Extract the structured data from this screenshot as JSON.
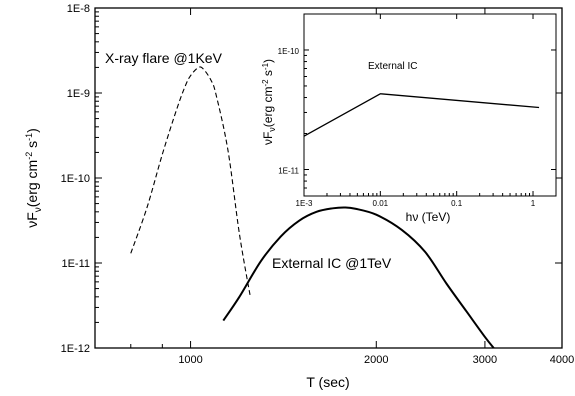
{
  "chart_data": [
    {
      "type": "line",
      "title": "",
      "xlabel": "T (sec)",
      "ylabel": "νF_ν (erg cm^-2 s^-1)",
      "ylabel_parts": {
        "nu": "νF",
        "sub": "ν",
        "unit_a": "(erg cm",
        "exp_a": "-2",
        "unit_b": " s",
        "exp_b": "-1",
        "close": ")"
      },
      "xscale": "log",
      "yscale": "log",
      "xlim": [
        700,
        4000
      ],
      "ylim": [
        1e-12,
        1e-08
      ],
      "xticks": [
        1000,
        2000,
        3000,
        4000
      ],
      "xtick_labels": [
        "1000",
        "2000",
        "3000",
        "4000"
      ],
      "yticks": [
        1e-12,
        1e-11,
        1e-10,
        1e-09,
        1e-08
      ],
      "ytick_labels": [
        "1E-12",
        "1E-11",
        "1E-10",
        "1E-9",
        "1E-8"
      ],
      "grid": false,
      "series": [
        {
          "annotation": "X-ray flare @1KeV",
          "style": "dashed",
          "x": [
            800,
            850,
            900,
            950,
            980,
            1000,
            1030,
            1050,
            1080,
            1100,
            1150,
            1200,
            1250
          ],
          "y": [
            1.3e-11,
            4.5e-11,
            1.9e-10,
            6.5e-10,
            1.2e-09,
            1.6e-09,
            2e-09,
            1.9e-09,
            1.4e-09,
            9.5e-10,
            2.1e-10,
            2.2e-11,
            4e-12
          ]
        },
        {
          "annotation": "External IC @1TeV",
          "style": "solid",
          "x": [
            1130,
            1200,
            1300,
            1400,
            1500,
            1600,
            1700,
            1780,
            1850,
            2000,
            2200,
            2400,
            2600,
            2800,
            3000,
            3100
          ],
          "y": [
            2.1e-12,
            4e-12,
            1.05e-11,
            2.05e-11,
            3.15e-11,
            4e-11,
            4.4e-11,
            4.5e-11,
            4.35e-11,
            3.7e-11,
            2.45e-11,
            1.35e-11,
            5.7e-12,
            2.7e-12,
            1.35e-12,
            1e-12
          ]
        }
      ]
    },
    {
      "type": "line",
      "title": "",
      "xlabel": "hν (TeV)",
      "ylabel": "νF_ν (erg cm^-2 s^-1)",
      "xlabel_parts": {
        "main": "hν",
        "unit": "(TeV)"
      },
      "ylabel_parts": {
        "nu": "νF",
        "sub": "ν",
        "unit_a": "(erg cm",
        "exp_a": "-2",
        "unit_b": " s",
        "exp_b": "-1",
        "close": ")"
      },
      "xscale": "log",
      "yscale": "log",
      "xlim": [
        0.001,
        2
      ],
      "ylim": [
        6e-12,
        2e-10
      ],
      "xticks": [
        0.001,
        0.01,
        0.1,
        1
      ],
      "xtick_labels": [
        "1E-3",
        "0.01",
        "0.1",
        "1"
      ],
      "yticks": [
        1e-11,
        1e-10
      ],
      "ytick_labels": [
        "1E-11",
        "1E-10"
      ],
      "grid": false,
      "series": [
        {
          "annotation": "External IC",
          "style": "solid",
          "x": [
            0.001,
            0.01,
            1.2
          ],
          "y": [
            1.9e-11,
            4.3e-11,
            3.3e-11
          ]
        }
      ]
    }
  ]
}
